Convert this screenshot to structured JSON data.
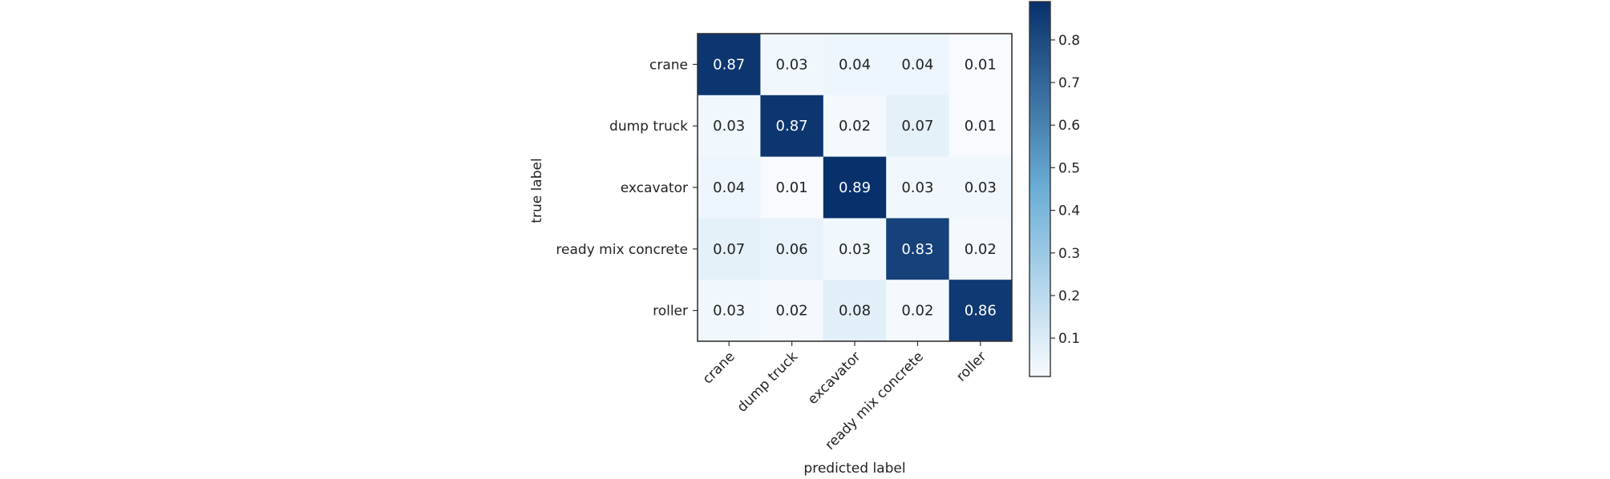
{
  "chart_data": {
    "type": "heatmap",
    "title": "",
    "xlabel": "predicted label",
    "ylabel": "true label",
    "x_categories": [
      "crane",
      "dump truck",
      "excavator",
      "ready mix concrete",
      "roller"
    ],
    "y_categories": [
      "crane",
      "dump truck",
      "excavator",
      "ready mix concrete",
      "roller"
    ],
    "values": [
      [
        0.87,
        0.03,
        0.04,
        0.04,
        0.01
      ],
      [
        0.03,
        0.87,
        0.02,
        0.07,
        0.01
      ],
      [
        0.04,
        0.01,
        0.89,
        0.03,
        0.03
      ],
      [
        0.07,
        0.06,
        0.03,
        0.83,
        0.02
      ],
      [
        0.03,
        0.02,
        0.08,
        0.02,
        0.86
      ]
    ],
    "colorbar": {
      "ticks": [
        0.1,
        0.2,
        0.3,
        0.4,
        0.5,
        0.6,
        0.7,
        0.8
      ],
      "range": [
        0.01,
        0.89
      ]
    },
    "colors": {
      "low": "#f7fbff",
      "mid": "#6baed6",
      "high": "#08306b"
    },
    "grid": false,
    "legend": "colorbar-right"
  }
}
